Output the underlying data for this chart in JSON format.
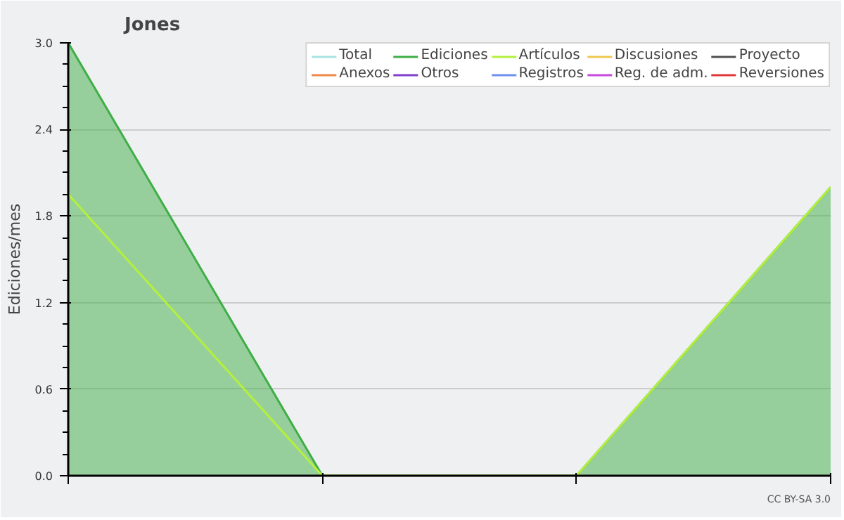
{
  "chart_data": {
    "type": "line",
    "title": "Jones",
    "ylabel": "Ediciones/mes",
    "categories": [
      null,
      null,
      null,
      null
    ],
    "series": [
      {
        "name": "Total",
        "color": "#a8e4e4",
        "values": [
          null,
          null,
          null,
          null
        ]
      },
      {
        "name": "Ediciones",
        "type": "area",
        "color": "#3fae46",
        "values": [
          3.0,
          0.0,
          0.0,
          2.0
        ]
      },
      {
        "name": "Artículos",
        "color": "#b4f03c",
        "values": [
          1.95,
          0.0,
          0.0,
          2.0
        ]
      },
      {
        "name": "Discusiones",
        "color": "#f0c850",
        "values": [
          null,
          null,
          null,
          null
        ]
      },
      {
        "name": "Proyecto",
        "color": "#505050",
        "values": [
          null,
          null,
          null,
          null
        ]
      },
      {
        "name": "Anexos",
        "color": "#f08848",
        "values": [
          null,
          null,
          null,
          null
        ]
      },
      {
        "name": "Otros",
        "color": "#8040d0",
        "values": [
          null,
          null,
          null,
          null
        ]
      },
      {
        "name": "Registros",
        "color": "#7090f0",
        "values": [
          null,
          null,
          null,
          null
        ]
      },
      {
        "name": "Reg. de adm.",
        "color": "#c848e0",
        "values": [
          null,
          null,
          null,
          null
        ]
      },
      {
        "name": "Reversiones",
        "color": "#e03838",
        "values": [
          null,
          null,
          null,
          null
        ]
      }
    ],
    "ylim": [
      0,
      3.0
    ],
    "yticks": [
      {
        "value": 0,
        "label": "0.0"
      },
      0.6,
      1.2,
      1.8,
      2.4,
      {
        "value": 3.0,
        "label": "3.0"
      }
    ],
    "grid": "y",
    "legend": "top right",
    "annotations": [
      "CC BY-SA 3.0"
    ]
  }
}
